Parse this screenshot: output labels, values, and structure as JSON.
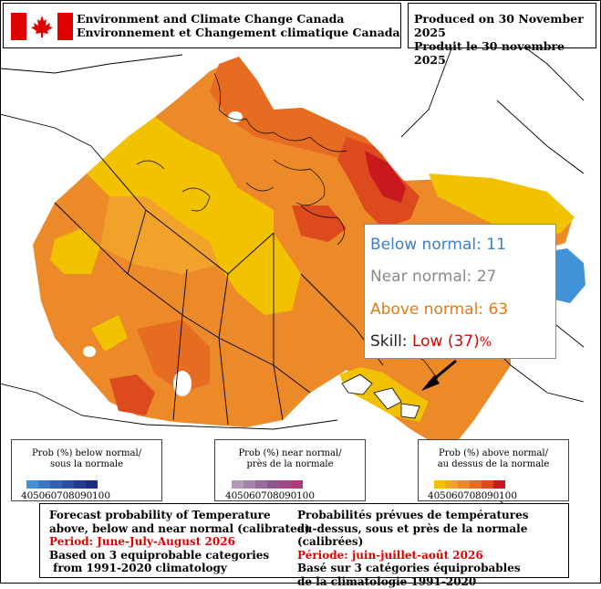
{
  "header": {
    "agency_en": "Environment and Climate Change Canada",
    "agency_fr": "Environnement et Changement climatique Canada",
    "produced_en": "Produced on 30 November 2025",
    "produced_fr": "Produit le 30 novembre 2025"
  },
  "tooltip": {
    "below_label": "Below normal:",
    "below_value": "11",
    "near_label": "Near normal:",
    "near_value": "27",
    "above_label": "Above normal:",
    "above_value": "63",
    "skill_label": "Skill:",
    "skill_value": "Low (37)",
    "skill_unit": "%",
    "colors": {
      "below": "#3d7fc4",
      "near": "#8a8a8a",
      "above": "#e07b18",
      "skill": "#e00000"
    }
  },
  "legends": [
    {
      "title_en": "Prob (%) below normal/",
      "title_fr": "sous la normale",
      "ticks": [
        "40",
        "50",
        "60",
        "70",
        "80",
        "90",
        "100"
      ],
      "colors": [
        "#3f93d6",
        "#3778c4",
        "#2f62b4",
        "#2a4ea3",
        "#223b91",
        "#1c2a80"
      ]
    },
    {
      "title_en": "Prob (%) near normal/",
      "title_fr": "près de la normale",
      "ticks": [
        "40",
        "50",
        "60",
        "70",
        "80",
        "90",
        "100"
      ],
      "colors": [
        "#b49ab9",
        "#a582ab",
        "#9a6a9c",
        "#8f5590",
        "#a04785",
        "#b0397a"
      ]
    },
    {
      "title_en": "Prob (%) above normal/",
      "title_fr": "au dessus de la normale",
      "ticks": [
        "40",
        "50",
        "60",
        "70",
        "80",
        "90",
        "100"
      ],
      "colors": [
        "#f2c200",
        "#f0a22a",
        "#ec8a2a",
        "#e66c22",
        "#dc4a1e",
        "#c8191e"
      ]
    }
  ],
  "info": {
    "en_line1": "Forecast probability of Temperature",
    "en_line2": "above, below and near normal (calibrated)",
    "en_period": "Period: June-July-August 2026",
    "en_line4": "Based on 3 equiprobable categories",
    "en_line5": " from 1991-2020 climatology",
    "fr_line1": "Probabilités prévues de températures",
    "fr_line2": "au-dessus, sous et près de la normale (calibrées)",
    "fr_period": "Période: juin-juillet-août 2026",
    "fr_line4": "Basé sur 3 catégories équiprobables",
    "fr_line5": "de la climatologie 1991-2020"
  },
  "map_colors": {
    "above_40": "#f2c200",
    "above_50": "#f0a22a",
    "above_60": "#ec8a2a",
    "above_70": "#e66c22",
    "above_80": "#dc4a1e",
    "above_90": "#c8191e",
    "below_40": "#3f93d6"
  }
}
